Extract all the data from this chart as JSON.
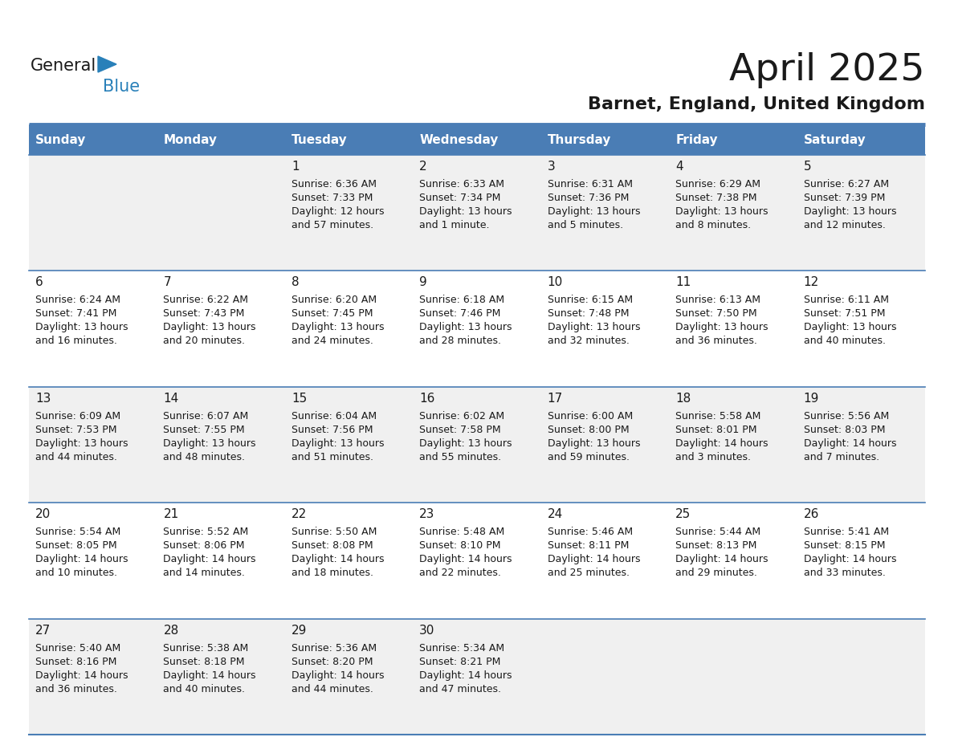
{
  "title": "April 2025",
  "subtitle": "Barnet, England, United Kingdom",
  "header_bg_color": "#4a7db5",
  "header_text_color": "#ffffff",
  "row_bg_colors": [
    "#f0f0f0",
    "#ffffff",
    "#f0f0f0",
    "#ffffff",
    "#f0f0f0"
  ],
  "separator_color": "#4a7db5",
  "cell_text_color": "#1a1a1a",
  "day_names": [
    "Sunday",
    "Monday",
    "Tuesday",
    "Wednesday",
    "Thursday",
    "Friday",
    "Saturday"
  ],
  "days": [
    {
      "row": 0,
      "col": 0,
      "num": "",
      "sunrise": "",
      "sunset": "",
      "daylight": ""
    },
    {
      "row": 0,
      "col": 1,
      "num": "",
      "sunrise": "",
      "sunset": "",
      "daylight": ""
    },
    {
      "row": 0,
      "col": 2,
      "num": "1",
      "sunrise": "6:36 AM",
      "sunset": "7:33 PM",
      "daylight": "12 hours and 57 minutes."
    },
    {
      "row": 0,
      "col": 3,
      "num": "2",
      "sunrise": "6:33 AM",
      "sunset": "7:34 PM",
      "daylight": "13 hours and 1 minute."
    },
    {
      "row": 0,
      "col": 4,
      "num": "3",
      "sunrise": "6:31 AM",
      "sunset": "7:36 PM",
      "daylight": "13 hours and 5 minutes."
    },
    {
      "row": 0,
      "col": 5,
      "num": "4",
      "sunrise": "6:29 AM",
      "sunset": "7:38 PM",
      "daylight": "13 hours and 8 minutes."
    },
    {
      "row": 0,
      "col": 6,
      "num": "5",
      "sunrise": "6:27 AM",
      "sunset": "7:39 PM",
      "daylight": "13 hours and 12 minutes."
    },
    {
      "row": 1,
      "col": 0,
      "num": "6",
      "sunrise": "6:24 AM",
      "sunset": "7:41 PM",
      "daylight": "13 hours and 16 minutes."
    },
    {
      "row": 1,
      "col": 1,
      "num": "7",
      "sunrise": "6:22 AM",
      "sunset": "7:43 PM",
      "daylight": "13 hours and 20 minutes."
    },
    {
      "row": 1,
      "col": 2,
      "num": "8",
      "sunrise": "6:20 AM",
      "sunset": "7:45 PM",
      "daylight": "13 hours and 24 minutes."
    },
    {
      "row": 1,
      "col": 3,
      "num": "9",
      "sunrise": "6:18 AM",
      "sunset": "7:46 PM",
      "daylight": "13 hours and 28 minutes."
    },
    {
      "row": 1,
      "col": 4,
      "num": "10",
      "sunrise": "6:15 AM",
      "sunset": "7:48 PM",
      "daylight": "13 hours and 32 minutes."
    },
    {
      "row": 1,
      "col": 5,
      "num": "11",
      "sunrise": "6:13 AM",
      "sunset": "7:50 PM",
      "daylight": "13 hours and 36 minutes."
    },
    {
      "row": 1,
      "col": 6,
      "num": "12",
      "sunrise": "6:11 AM",
      "sunset": "7:51 PM",
      "daylight": "13 hours and 40 minutes."
    },
    {
      "row": 2,
      "col": 0,
      "num": "13",
      "sunrise": "6:09 AM",
      "sunset": "7:53 PM",
      "daylight": "13 hours and 44 minutes."
    },
    {
      "row": 2,
      "col": 1,
      "num": "14",
      "sunrise": "6:07 AM",
      "sunset": "7:55 PM",
      "daylight": "13 hours and 48 minutes."
    },
    {
      "row": 2,
      "col": 2,
      "num": "15",
      "sunrise": "6:04 AM",
      "sunset": "7:56 PM",
      "daylight": "13 hours and 51 minutes."
    },
    {
      "row": 2,
      "col": 3,
      "num": "16",
      "sunrise": "6:02 AM",
      "sunset": "7:58 PM",
      "daylight": "13 hours and 55 minutes."
    },
    {
      "row": 2,
      "col": 4,
      "num": "17",
      "sunrise": "6:00 AM",
      "sunset": "8:00 PM",
      "daylight": "13 hours and 59 minutes."
    },
    {
      "row": 2,
      "col": 5,
      "num": "18",
      "sunrise": "5:58 AM",
      "sunset": "8:01 PM",
      "daylight": "14 hours and 3 minutes."
    },
    {
      "row": 2,
      "col": 6,
      "num": "19",
      "sunrise": "5:56 AM",
      "sunset": "8:03 PM",
      "daylight": "14 hours and 7 minutes."
    },
    {
      "row": 3,
      "col": 0,
      "num": "20",
      "sunrise": "5:54 AM",
      "sunset": "8:05 PM",
      "daylight": "14 hours and 10 minutes."
    },
    {
      "row": 3,
      "col": 1,
      "num": "21",
      "sunrise": "5:52 AM",
      "sunset": "8:06 PM",
      "daylight": "14 hours and 14 minutes."
    },
    {
      "row": 3,
      "col": 2,
      "num": "22",
      "sunrise": "5:50 AM",
      "sunset": "8:08 PM",
      "daylight": "14 hours and 18 minutes."
    },
    {
      "row": 3,
      "col": 3,
      "num": "23",
      "sunrise": "5:48 AM",
      "sunset": "8:10 PM",
      "daylight": "14 hours and 22 minutes."
    },
    {
      "row": 3,
      "col": 4,
      "num": "24",
      "sunrise": "5:46 AM",
      "sunset": "8:11 PM",
      "daylight": "14 hours and 25 minutes."
    },
    {
      "row": 3,
      "col": 5,
      "num": "25",
      "sunrise": "5:44 AM",
      "sunset": "8:13 PM",
      "daylight": "14 hours and 29 minutes."
    },
    {
      "row": 3,
      "col": 6,
      "num": "26",
      "sunrise": "5:41 AM",
      "sunset": "8:15 PM",
      "daylight": "14 hours and 33 minutes."
    },
    {
      "row": 4,
      "col": 0,
      "num": "27",
      "sunrise": "5:40 AM",
      "sunset": "8:16 PM",
      "daylight": "14 hours and 36 minutes."
    },
    {
      "row": 4,
      "col": 1,
      "num": "28",
      "sunrise": "5:38 AM",
      "sunset": "8:18 PM",
      "daylight": "14 hours and 40 minutes."
    },
    {
      "row": 4,
      "col": 2,
      "num": "29",
      "sunrise": "5:36 AM",
      "sunset": "8:20 PM",
      "daylight": "14 hours and 44 minutes."
    },
    {
      "row": 4,
      "col": 3,
      "num": "30",
      "sunrise": "5:34 AM",
      "sunset": "8:21 PM",
      "daylight": "14 hours and 47 minutes."
    },
    {
      "row": 4,
      "col": 4,
      "num": "",
      "sunrise": "",
      "sunset": "",
      "daylight": ""
    },
    {
      "row": 4,
      "col": 5,
      "num": "",
      "sunrise": "",
      "sunset": "",
      "daylight": ""
    },
    {
      "row": 4,
      "col": 6,
      "num": "",
      "sunrise": "",
      "sunset": "",
      "daylight": ""
    }
  ],
  "num_rows": 5,
  "num_cols": 7,
  "logo_color_general": "#1a1a1a",
  "logo_color_blue": "#2980b9",
  "logo_triangle_color": "#2980b9",
  "title_fontsize": 34,
  "subtitle_fontsize": 16,
  "header_fontsize": 11,
  "daynum_fontsize": 11,
  "info_fontsize": 9
}
